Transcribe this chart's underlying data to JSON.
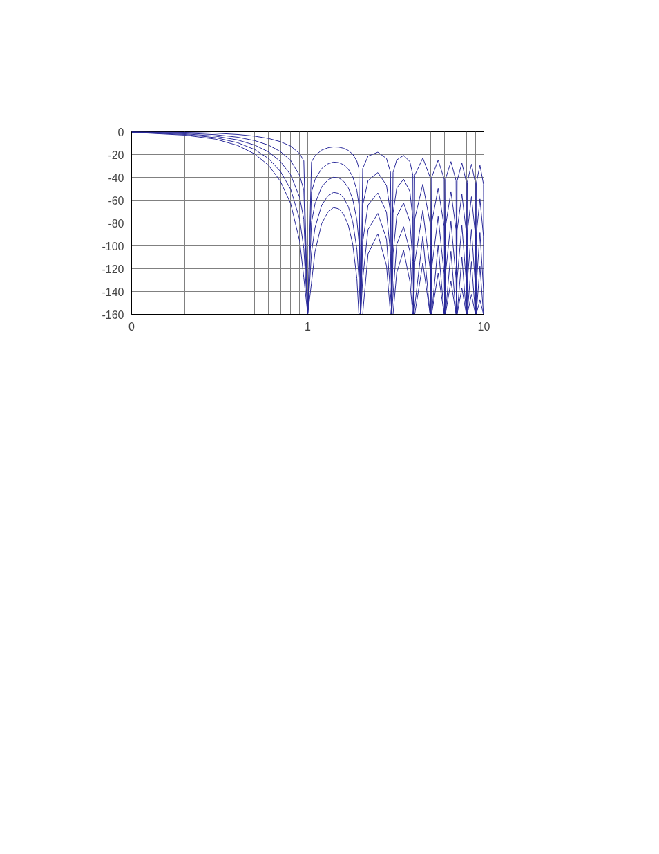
{
  "chart_data": {
    "type": "line",
    "log": "x",
    "grid": true,
    "marker": "none",
    "line_style": "solid",
    "xlim": [
      0.1,
      10
    ],
    "ylim": [
      -160,
      0
    ],
    "xticks": [
      {
        "value": 0.1,
        "label": "0"
      },
      {
        "value": 0.2,
        "label": null
      },
      {
        "value": 0.3,
        "label": null
      },
      {
        "value": 0.4,
        "label": null
      },
      {
        "value": 0.5,
        "label": null
      },
      {
        "value": 0.6,
        "label": null
      },
      {
        "value": 0.7,
        "label": null
      },
      {
        "value": 0.8,
        "label": null
      },
      {
        "value": 0.9,
        "label": null
      },
      1,
      {
        "value": 2,
        "label": null
      },
      {
        "value": 3,
        "label": null
      },
      {
        "value": 4,
        "label": null
      },
      {
        "value": 5,
        "label": null
      },
      {
        "value": 6,
        "label": null
      },
      {
        "value": 7,
        "label": null
      },
      {
        "value": 8,
        "label": null
      },
      {
        "value": 9,
        "label": null
      },
      10
    ],
    "yticks": [
      -160,
      -140,
      -120,
      -100,
      -80,
      -60,
      -40,
      -20,
      0
    ],
    "x": [
      0.1,
      0.2,
      0.3,
      0.4,
      0.5,
      0.6,
      0.7,
      0.8,
      0.9,
      0.95,
      1,
      1.05,
      1.1,
      1.2,
      1.3,
      1.4,
      1.5,
      1.6,
      1.7,
      1.8,
      1.9,
      1.95,
      2,
      2.05,
      2.2,
      2.5,
      2.8,
      2.95,
      3,
      3.05,
      3.2,
      3.5,
      3.8,
      3.95,
      4,
      4.05,
      4.5,
      4.95,
      5,
      5.05,
      5.5,
      5.95,
      6,
      6.05,
      6.5,
      6.95,
      7,
      7.05,
      7.5,
      7.95,
      8,
      8.05,
      8.5,
      8.95,
      9,
      9.05,
      9.5,
      9.95,
      10
    ],
    "series": [
      {
        "color": "#2a2a9a",
        "values": [
          -0.1,
          -0.6,
          -1.3,
          -2.4,
          -3.9,
          -5.9,
          -8.7,
          -12.6,
          -19.2,
          -25.6,
          -160,
          -26.5,
          -21.0,
          -16.1,
          -14.1,
          -13.3,
          -13.5,
          -14.5,
          -16.4,
          -19.7,
          -25.7,
          -31.9,
          -160,
          -32.3,
          -21.4,
          -17.9,
          -23.5,
          -35.5,
          -160,
          -35.7,
          -24.7,
          -20.8,
          -26.2,
          -38.0,
          -160,
          -38.2,
          -23.0,
          -40.0,
          -160,
          -40.1,
          -24.8,
          -41.6,
          -160,
          -41.7,
          -26.2,
          -42.9,
          -160,
          -43.0,
          -27.4,
          -44.1,
          -160,
          -44.2,
          -28.5,
          -45.1,
          -160,
          -45.2,
          -29.5,
          -46.0,
          -160
        ]
      },
      {
        "color": "#2a2a9a",
        "values": [
          -0.2,
          -1.2,
          -2.6,
          -4.8,
          -7.8,
          -11.8,
          -17.4,
          -25.2,
          -38.4,
          -51.2,
          -160,
          -53,
          -42,
          -32.2,
          -28.2,
          -26.6,
          -27,
          -29,
          -32.8,
          -39.4,
          -51.4,
          -63.8,
          -160,
          -64.6,
          -42.8,
          -35.8,
          -47,
          -71,
          -160,
          -71.4,
          -49.4,
          -41.6,
          -52.4,
          -76,
          -160,
          -76.4,
          -46,
          -80,
          -160,
          -80.2,
          -49.6,
          -83.2,
          -160,
          -83.4,
          -52.4,
          -85.8,
          -160,
          -86,
          -54.8,
          -88.2,
          -160,
          -88.4,
          -57,
          -90.2,
          -160,
          -90.4,
          -59,
          -92,
          -160
        ]
      },
      {
        "color": "#2a2a9a",
        "values": [
          -0.3,
          -1.8,
          -3.9,
          -7.2,
          -11.7,
          -17.7,
          -26.1,
          -37.8,
          -57.6,
          -76.8,
          -160,
          -79.5,
          -63,
          -48.3,
          -42.3,
          -39.9,
          -40.5,
          -43.5,
          -49.2,
          -59.1,
          -77.1,
          -95.7,
          -160,
          -96.9,
          -64.2,
          -53.7,
          -70.5,
          -106.5,
          -160,
          -107.1,
          -74.1,
          -62.4,
          -78.6,
          -114,
          -160,
          -114.6,
          -69,
          -120,
          -160,
          -120.3,
          -74.4,
          -124.8,
          -160,
          -125.1,
          -78.6,
          -128.7,
          -160,
          -129,
          -82.2,
          -132.3,
          -160,
          -132.6,
          -85.5,
          -135.3,
          -160,
          -135.6,
          -88.5,
          -138,
          -160
        ]
      },
      {
        "color": "#2a2a9a",
        "values": [
          -0.4,
          -2.4,
          -5.2,
          -9.6,
          -15.6,
          -23.6,
          -34.8,
          -50.4,
          -76.8,
          -102.4,
          -160,
          -106,
          -84,
          -64.4,
          -56.4,
          -53.2,
          -54,
          -58,
          -65.6,
          -78.8,
          -102.8,
          -127.6,
          -160,
          -129.2,
          -85.6,
          -71.6,
          -94,
          -142,
          -160,
          -142.8,
          -98.8,
          -83.2,
          -104.8,
          -152,
          -160,
          -152.8,
          -92,
          -160,
          -160,
          -160,
          -99.2,
          -160,
          -160,
          -160,
          -104.8,
          -160,
          -160,
          -160,
          -109.6,
          -160,
          -160,
          -160,
          -114,
          -160,
          -160,
          -160,
          -118,
          -160,
          -160
        ]
      },
      {
        "color": "#2a2a9a",
        "values": [
          -0.5,
          -3,
          -6.5,
          -12,
          -19.5,
          -29.5,
          -43.5,
          -63,
          -96,
          -128,
          -160,
          -132.5,
          -105,
          -80.5,
          -70.5,
          -66.5,
          -67.5,
          -72.5,
          -82,
          -98.5,
          -128.5,
          -159.5,
          -160,
          -160,
          -107,
          -89.5,
          -117.5,
          -160,
          -160,
          -160,
          -123.5,
          -104,
          -131,
          -160,
          -160,
          -160,
          -115,
          -160,
          -160,
          -160,
          -124,
          -160,
          -160,
          -160,
          -131,
          -160,
          -160,
          -160,
          -137,
          -160,
          -160,
          -160,
          -142.5,
          -160,
          -160,
          -160,
          -147.5,
          -160,
          -160
        ]
      }
    ]
  }
}
